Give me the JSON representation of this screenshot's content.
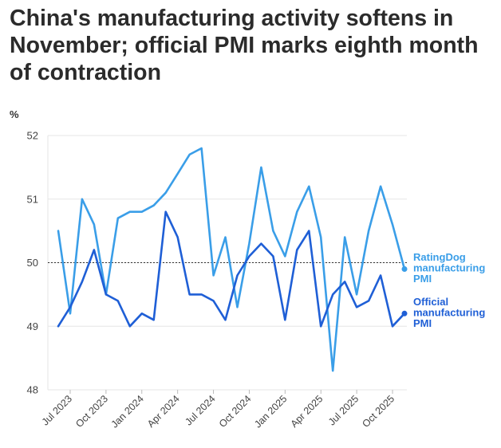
{
  "title": "China's manufacturing activity softens in November; official PMI marks eighth month of contraction",
  "chart_data": {
    "type": "line",
    "unit": "%",
    "x": [
      "Jun 2023",
      "Jul 2023",
      "Aug 2023",
      "Sep 2023",
      "Oct 2023",
      "Nov 2023",
      "Dec 2023",
      "Jan 2024",
      "Feb 2024",
      "Mar 2024",
      "Apr 2024",
      "May 2024",
      "Jun 2024",
      "Jul 2024",
      "Aug 2024",
      "Sep 2024",
      "Oct 2024",
      "Nov 2024",
      "Dec 2024",
      "Jan 2025",
      "Feb 2025",
      "Mar 2025",
      "Apr 2025",
      "May 2025",
      "Jun 2025",
      "Jul 2025",
      "Aug 2025",
      "Sep 2025",
      "Oct 2025",
      "Nov 2025"
    ],
    "tick_labels": [
      "Jul 2023",
      "Oct 2023",
      "Jan 2024",
      "Apr 2024",
      "Jul 2024",
      "Oct 2024",
      "Jan 2025",
      "Apr 2025",
      "Jul 2025",
      "Oct 2025"
    ],
    "tick_indices": [
      1,
      4,
      7,
      10,
      13,
      16,
      19,
      22,
      25,
      28
    ],
    "ylim": [
      48,
      52
    ],
    "yticks": [
      48,
      49,
      50,
      51,
      52
    ],
    "reference_line": 50,
    "series": [
      {
        "name": "RatingDog manufacturing PMI",
        "label_lines": [
          "RatingDog",
          "manufacturing",
          "PMI"
        ],
        "color": "#3a9ee8",
        "values": [
          50.5,
          49.2,
          51.0,
          50.6,
          49.5,
          50.7,
          50.8,
          50.8,
          50.9,
          51.1,
          51.4,
          51.7,
          51.8,
          49.8,
          50.4,
          49.3,
          50.3,
          51.5,
          50.5,
          50.1,
          50.8,
          51.2,
          50.4,
          48.3,
          50.4,
          49.5,
          50.5,
          51.2,
          50.6,
          49.9
        ]
      },
      {
        "name": "Official manufacturing PMI",
        "label_lines": [
          "Official",
          "manufacturing",
          "PMI"
        ],
        "color": "#1f5fd6",
        "values": [
          49.0,
          49.3,
          49.7,
          50.2,
          49.5,
          49.4,
          49.0,
          49.2,
          49.1,
          50.8,
          50.4,
          49.5,
          49.5,
          49.4,
          49.1,
          49.8,
          50.1,
          50.3,
          50.1,
          49.1,
          50.2,
          50.5,
          49.0,
          49.5,
          49.7,
          49.3,
          49.4,
          49.8,
          49.0,
          49.2
        ]
      }
    ]
  }
}
